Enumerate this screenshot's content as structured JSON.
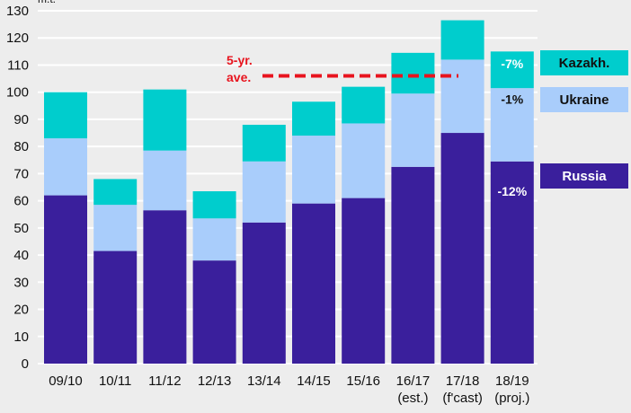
{
  "chart_data": {
    "type": "bar",
    "stacked": true,
    "y_unit_label": "m.t.",
    "categories": [
      [
        "09/10"
      ],
      [
        "10/11"
      ],
      [
        "11/12"
      ],
      [
        "12/13"
      ],
      [
        "13/14"
      ],
      [
        "14/15"
      ],
      [
        "15/16"
      ],
      [
        "16/17",
        "(est.)"
      ],
      [
        "17/18",
        "(f'cast)"
      ],
      [
        "18/19",
        "(proj.)"
      ]
    ],
    "series": [
      {
        "name": "Russia",
        "color": "#3a1f9c",
        "values": [
          62,
          41.5,
          56.5,
          38,
          52,
          59,
          61,
          72.5,
          85,
          74.5
        ]
      },
      {
        "name": "Ukraine",
        "color": "#a9cdfb",
        "values": [
          21,
          17,
          22,
          15.5,
          22.5,
          25,
          27.5,
          27,
          27,
          27
        ]
      },
      {
        "name": "Kazakh.",
        "color": "#00cdcd",
        "values": [
          17,
          9.5,
          22.5,
          10,
          13.5,
          12.5,
          13.5,
          15,
          14.5,
          13.5
        ]
      }
    ],
    "ylim": [
      0,
      130
    ],
    "yticks": [
      0,
      10,
      20,
      30,
      40,
      50,
      60,
      70,
      80,
      90,
      100,
      110,
      120,
      130
    ],
    "grid": true,
    "annotations": {
      "average_line": {
        "label_lines": [
          "5-yr.",
          "ave."
        ],
        "value": 106,
        "color": "#e8141e"
      },
      "changes": [
        {
          "series": "Kazakh.",
          "text": "-7%"
        },
        {
          "series": "Ukraine",
          "text": "-1%"
        },
        {
          "series": "Russia",
          "text": "-12%"
        }
      ]
    }
  }
}
